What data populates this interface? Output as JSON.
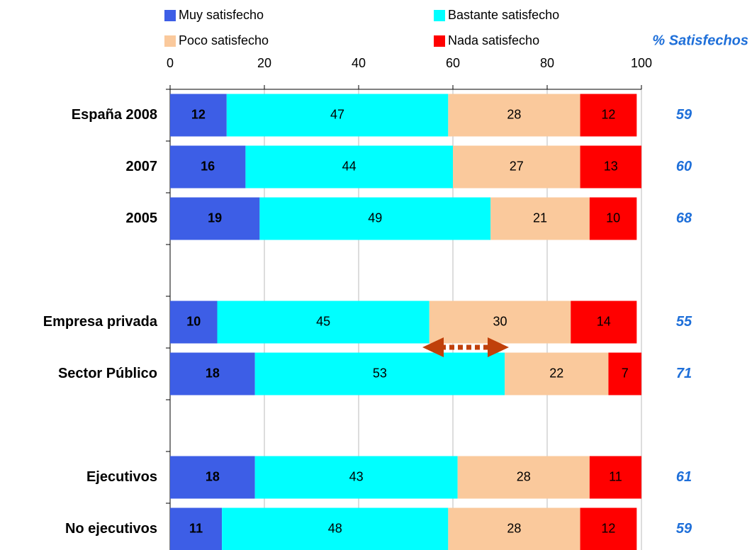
{
  "chart_data": {
    "type": "stacked_bar_horizontal",
    "categories": [
      "España 2008",
      "2007",
      "2005",
      null,
      "Empresa privada",
      "Sector Público",
      null,
      "Ejecutivos",
      "No ejecutivos"
    ],
    "series": [
      {
        "name": "Muy satisfecho",
        "color": "#3d5ee6",
        "values": [
          12,
          16,
          19,
          null,
          10,
          18,
          null,
          18,
          11
        ]
      },
      {
        "name": "Bastante satisfecho",
        "color": "#00ffff",
        "values": [
          47,
          44,
          49,
          null,
          45,
          53,
          null,
          43,
          48
        ]
      },
      {
        "name": "Poco satisfecho",
        "color": "#fac99c",
        "values": [
          28,
          27,
          21,
          null,
          30,
          22,
          null,
          28,
          28
        ]
      },
      {
        "name": "Nada satisfecho",
        "color": "#ff0000",
        "values": [
          12,
          13,
          10,
          null,
          14,
          7,
          null,
          11,
          12
        ]
      }
    ],
    "right_column": {
      "title": "% Satisfechos",
      "values": [
        59,
        60,
        68,
        null,
        55,
        71,
        null,
        61,
        59
      ]
    },
    "xlim": [
      0,
      100
    ],
    "xticks": [
      0,
      20,
      40,
      60,
      80,
      100
    ],
    "grid": true
  }
}
